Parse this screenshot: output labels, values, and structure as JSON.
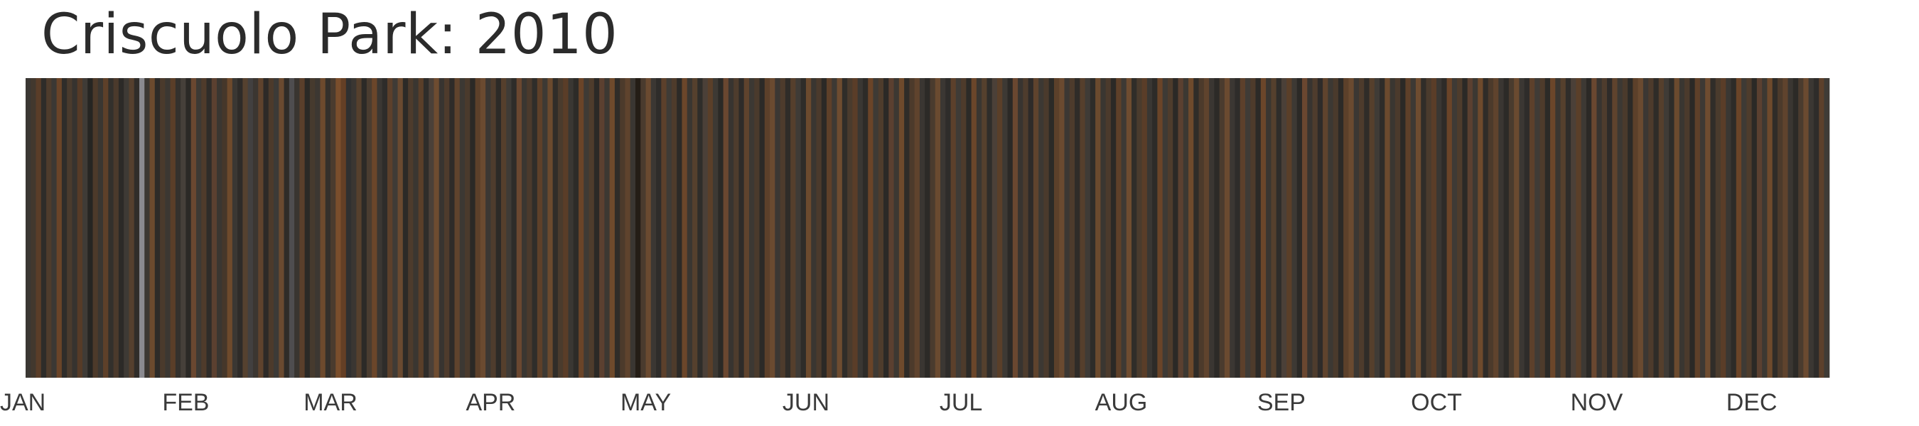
{
  "title": "Criscuolo Park: 2010",
  "chart_data": {
    "type": "heatmap",
    "title": "Criscuolo Park: 2010",
    "year": 2010,
    "x_axis": {
      "type": "date",
      "range": [
        "2010-01-01",
        "2010-12-31"
      ],
      "tick_labels": [
        "JAN",
        "FEB",
        "MAR",
        "APR",
        "MAY",
        "JUN",
        "JUL",
        "AUG",
        "SEP",
        "OCT",
        "NOV",
        "DEC"
      ],
      "tick_dates": [
        "2010-01-01",
        "2010-02-01",
        "2010-03-01",
        "2010-04-01",
        "2010-05-01",
        "2010-06-01",
        "2010-07-01",
        "2010-08-01",
        "2010-09-01",
        "2010-10-01",
        "2010-11-01",
        "2010-12-01"
      ]
    },
    "grid": false,
    "legend": "none",
    "day_colors": [
      "#3a3733",
      "#42382e",
      "#5a3d28",
      "#2e2c29",
      "#4e3c2c",
      "#3b3834",
      "#6a4428",
      "#2f2d2a",
      "#4a3b2d",
      "#36332f",
      "#563b27",
      "#3f3b36",
      "#262522",
      "#4d3a2a",
      "#3a3631",
      "#5e4029",
      "#33302c",
      "#4b3a2c",
      "#2c2a27",
      "#3e3a35",
      "#55402e",
      "#302d29",
      "#8a8a90",
      "#3c3833",
      "#6b4a2e",
      "#2d2b28",
      "#4a3a2c",
      "#3b3732",
      "#5a3e28",
      "#34312d",
      "#46403a",
      "#2b2926",
      "#6a4730",
      "#3d3934",
      "#4f3b2b",
      "#2f2c29",
      "#5b4030",
      "#3a3631",
      "#46372a",
      "#6e4a2c",
      "#3a3733",
      "#2e2b28",
      "#55412f",
      "#424040",
      "#3b3631",
      "#5f432d",
      "#2d2a27",
      "#4c3a2b",
      "#3c3a37",
      "#6a4a30",
      "#2f2c28",
      "#4e4d4f",
      "#393530",
      "#5a3f2b",
      "#2b2926",
      "#463a2e",
      "#3c3732",
      "#6d4a2d",
      "#34302b",
      "#4a3b2e",
      "#7a4e2c",
      "#643f25",
      "#303030",
      "#3a3632",
      "#55402d",
      "#2c2a27",
      "#4a3c30",
      "#6b462a",
      "#3b3733",
      "#2e2c2a",
      "#5c402b",
      "#3f3b36",
      "#6a4a30",
      "#2c2a27",
      "#4d3b2c",
      "#3a3631",
      "#5a3f29",
      "#2f2d2a",
      "#4b4038",
      "#6e4c30",
      "#383430",
      "#4e3b2c",
      "#2e2b29",
      "#5f432d",
      "#3c3833",
      "#4a3a2c",
      "#2b2926",
      "#5c402a",
      "#6a4a30",
      "#3b3733",
      "#4e3c2d",
      "#2c2a27",
      "#553f2c",
      "#3f3b36",
      "#2e2c29",
      "#6a4730",
      "#3a3631",
      "#4b3a2c",
      "#2f2d2a",
      "#5e4029",
      "#3d3934",
      "#6b4a2e",
      "#302d29",
      "#4a3b2d",
      "#5a3d28",
      "#3a3733",
      "#2d2b28",
      "#6a4428",
      "#3e3a35",
      "#4e3c2c",
      "#2b2926",
      "#5b4030",
      "#3c3832",
      "#6e4a2c",
      "#2f2c28",
      "#4c3a2b",
      "#5f432d",
      "#3a3632",
      "#241d16",
      "#4a3b2e",
      "#6a4a30",
      "#3b3733",
      "#2e2c2a",
      "#5c402b",
      "#3f3b36",
      "#4e3b2b",
      "#2c2a27",
      "#6b462a",
      "#3a3631",
      "#55402d",
      "#2f2d2a",
      "#4b4038",
      "#5a3f29",
      "#3d3934",
      "#2b2926",
      "#6a4730",
      "#383430",
      "#4e3c2d",
      "#2e2b29",
      "#5f432d",
      "#3c3833",
      "#4a3a2c",
      "#2c2a27",
      "#5c402a",
      "#6a4a30",
      "#3b3733",
      "#4d3b2c",
      "#2f2c28",
      "#553f2c",
      "#3f3b36",
      "#2e2c29",
      "#6b4a2e",
      "#3a3631",
      "#4b3a2c",
      "#2b2926",
      "#5e4029",
      "#3d3934",
      "#6e4c30",
      "#302d29",
      "#4a3b2d",
      "#5a3d28",
      "#3a3733",
      "#2d2b28",
      "#6a4428",
      "#3e3a35",
      "#4e3c2c",
      "#2b2926",
      "#5b4030",
      "#3c3832",
      "#6e4a2c",
      "#2f2c28",
      "#4c3a2b",
      "#5f432d",
      "#3a3632",
      "#2c2a27",
      "#4a3b2e",
      "#6a4a30",
      "#3b3733",
      "#2e2c2a",
      "#5c402b",
      "#3f3b36",
      "#4e3b2b",
      "#2c2a27",
      "#6b462a",
      "#3a3631",
      "#55402d",
      "#2f2d2a",
      "#4b4038",
      "#5a3f29",
      "#3d3934",
      "#2b2926",
      "#6a4730",
      "#383430",
      "#4e3c2d",
      "#2e2b29",
      "#5f432d",
      "#3c3833",
      "#4a3a2c",
      "#2c2a27",
      "#5c402a",
      "#6a4a30",
      "#3b3733",
      "#4d3b2c",
      "#2f2c28",
      "#553f2c",
      "#3f3b36",
      "#2e2c29",
      "#6b4a2e",
      "#3a3631",
      "#4b3a2c",
      "#2b2926",
      "#5e4029",
      "#3d3934",
      "#6e4c30",
      "#302d29",
      "#4a3b2d",
      "#5a3d28",
      "#3a3733",
      "#2d2b28",
      "#6a4428",
      "#3e3a35",
      "#4e3c2c",
      "#2b2926",
      "#5b4030",
      "#3c3832",
      "#6e4a2c",
      "#2f2c28",
      "#4c3a2b",
      "#5f432d",
      "#3a3632",
      "#2c2a27",
      "#4a3b2e",
      "#6a4a30",
      "#3b3733",
      "#2e2c2a",
      "#5c402b",
      "#3f3b36",
      "#4e3b2b",
      "#2c2a27",
      "#6b462a",
      "#3a3631",
      "#55402d",
      "#2f2d2a",
      "#4b4038",
      "#5a3f29",
      "#3d3934",
      "#2b2926",
      "#6a4730",
      "#383430",
      "#4e3c2d",
      "#2e2b29",
      "#5f432d",
      "#3c3833",
      "#4a3a2c",
      "#2c2a27",
      "#5c402a",
      "#6a4a30",
      "#3b3733",
      "#4d3b2c",
      "#2f2c28",
      "#553f2c",
      "#3f3b36",
      "#2e2c29",
      "#6b4a2e",
      "#3a3631",
      "#4b3a2c",
      "#2b2926",
      "#5e4029",
      "#3d3934",
      "#6e4c30",
      "#302d29",
      "#4a3b2d",
      "#5a3d28",
      "#3a3733",
      "#2d2b28",
      "#6a4428",
      "#3e3a35",
      "#4e3c2c",
      "#2b2926",
      "#5b4030",
      "#3c3832",
      "#6e4a2c",
      "#2f2c28",
      "#4c3a2b",
      "#5f432d",
      "#3a3632",
      "#2c2a27",
      "#4a3b2e",
      "#6a4a30",
      "#3b3733",
      "#2e2c2a",
      "#5c402b",
      "#3f3b36",
      "#4e3b2b",
      "#2c2a27",
      "#6b462a",
      "#3a3631",
      "#55402d",
      "#2f2d2a",
      "#4b4038",
      "#5a3f29",
      "#3d3934",
      "#2b2926",
      "#6a4730",
      "#383430",
      "#4e3c2d",
      "#2e2b29",
      "#5f432d",
      "#3c3833",
      "#4a3a2c",
      "#2c2a27",
      "#5c402a",
      "#6a4a30",
      "#3b3733",
      "#4d3b2c",
      "#2f2c28",
      "#553f2c",
      "#3f3b36",
      "#2e2c29",
      "#6b4a2e",
      "#3a3631",
      "#4b3a2c",
      "#2b2926",
      "#5e4029",
      "#3d3934",
      "#6e4c30",
      "#302d29",
      "#4a3b2d",
      "#5a3d28",
      "#3a3733",
      "#2d2b28",
      "#6a4428",
      "#3e3a35",
      "#4e3c2c",
      "#2b2926",
      "#5b4030",
      "#3c3832",
      "#6e4a2c",
      "#2f2c28",
      "#4c3a2b",
      "#5f432d",
      "#3a3632",
      "#2c2a27",
      "#4a3b2e",
      "#6a4a30",
      "#3b3733",
      "#2e2c2a",
      "#5c402b",
      "#3f3b36"
    ]
  }
}
